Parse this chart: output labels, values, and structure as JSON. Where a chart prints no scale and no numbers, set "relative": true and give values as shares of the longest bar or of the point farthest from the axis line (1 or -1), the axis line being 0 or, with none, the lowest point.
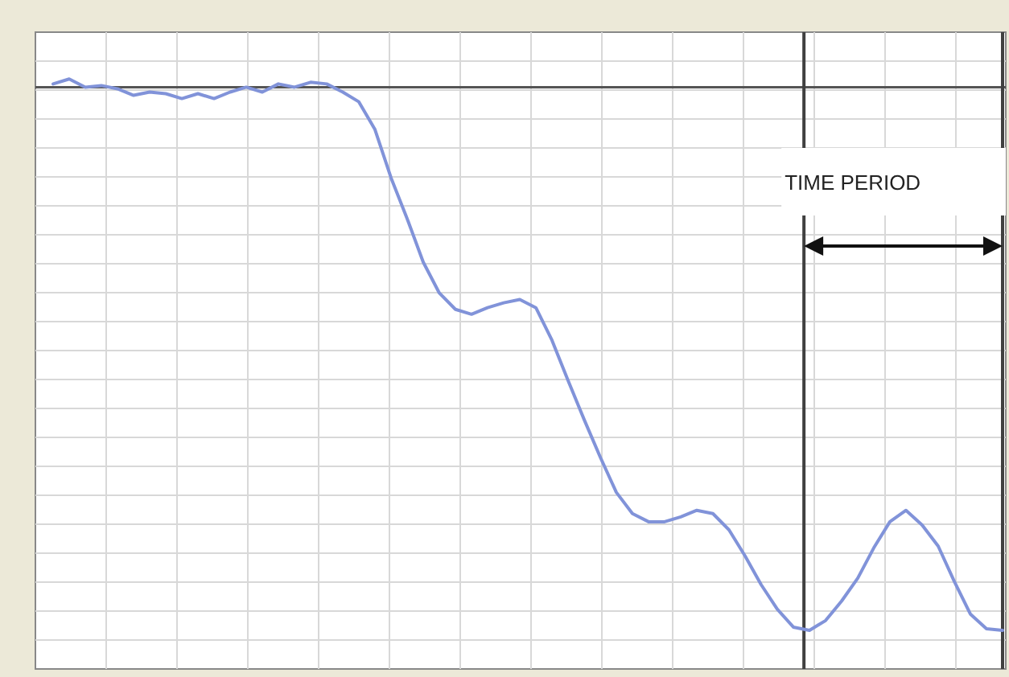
{
  "chart_data": {
    "type": "line",
    "relative": true,
    "grid": true,
    "categories": [
      null,
      null,
      null,
      null,
      null,
      null,
      null,
      null,
      null,
      null,
      null,
      null,
      null,
      null,
      null,
      null,
      null,
      null,
      null,
      null,
      null,
      null,
      null,
      null,
      null,
      null,
      null,
      null,
      null,
      null,
      null,
      null,
      null,
      null,
      null,
      null,
      null,
      null,
      null,
      null,
      null,
      null,
      null,
      null,
      null,
      null,
      null,
      null,
      null,
      null,
      null,
      null,
      null,
      null,
      null,
      null,
      null,
      null,
      null,
      null
    ],
    "annotations": [
      "TIME PERIOD"
    ],
    "series": [
      {
        "color": "#8193d9",
        "values": [
          0.006,
          0.015,
          0,
          0.003,
          -0.003,
          -0.015,
          -0.009,
          -0.012,
          -0.021,
          -0.012,
          -0.021,
          -0.009,
          0,
          -0.009,
          0.006,
          0,
          0.009,
          0.006,
          -0.009,
          -0.027,
          -0.078,
          -0.167,
          -0.242,
          -0.322,
          -0.379,
          -0.409,
          -0.418,
          -0.406,
          -0.397,
          -0.391,
          -0.406,
          -0.466,
          -0.54,
          -0.612,
          -0.681,
          -0.746,
          -0.785,
          -0.8,
          -0.8,
          -0.791,
          -0.779,
          -0.785,
          -0.815,
          -0.863,
          -0.916,
          -0.961,
          -0.994,
          -1,
          -0.982,
          -0.946,
          -0.904,
          -0.848,
          -0.8,
          -0.779,
          -0.806,
          -0.845,
          -0.91,
          -0.97,
          -0.997,
          -1
        ]
      }
    ]
  }
}
